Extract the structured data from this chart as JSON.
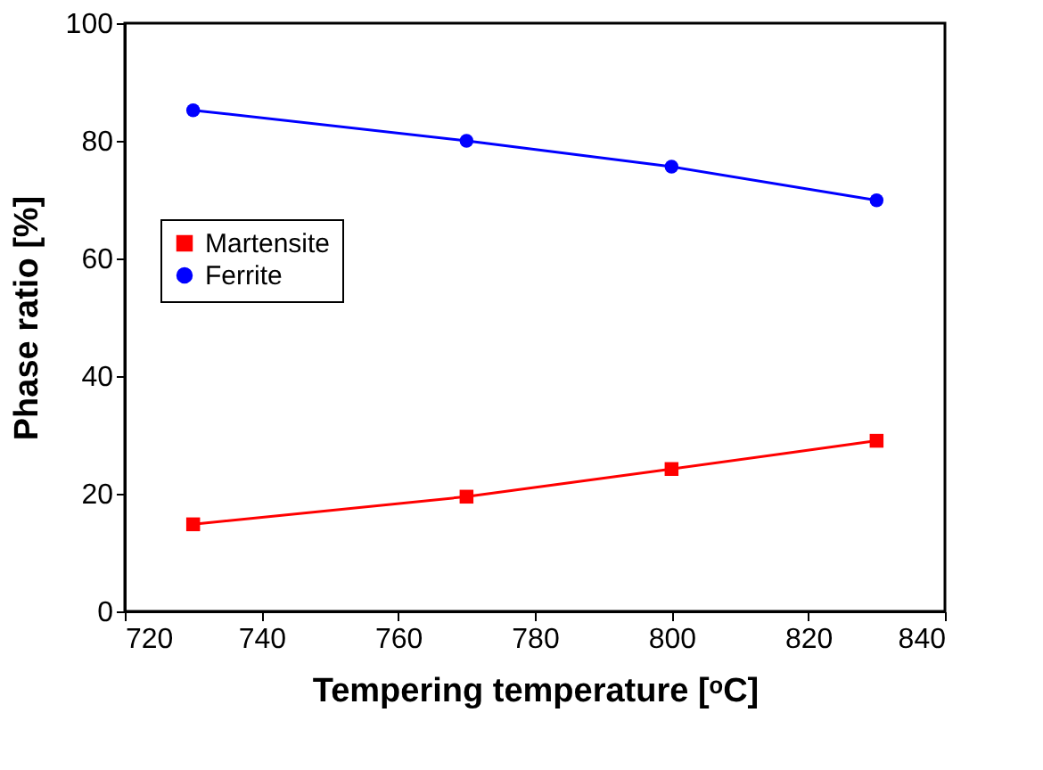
{
  "chart_data": {
    "type": "line",
    "xlabel": "Tempering temperature [ᵒC]",
    "ylabel": "Phase ratio [%]",
    "x": [
      730,
      770,
      800,
      830
    ],
    "series": [
      {
        "name": "Martensite",
        "color": "#ff0000",
        "marker": "square",
        "values": [
          14.8,
          19.5,
          24.2,
          29.0
        ]
      },
      {
        "name": "Ferrite",
        "color": "#0000ff",
        "marker": "circle",
        "values": [
          85.2,
          80.0,
          75.6,
          69.9
        ]
      }
    ],
    "xlim": [
      720,
      840
    ],
    "xticks": [
      720,
      740,
      760,
      780,
      800,
      820,
      840
    ],
    "ylim": [
      0,
      100
    ],
    "yticks": [
      0,
      20,
      40,
      60,
      80,
      100
    ],
    "grid": false,
    "legend": "top left",
    "line_style": "solid"
  }
}
